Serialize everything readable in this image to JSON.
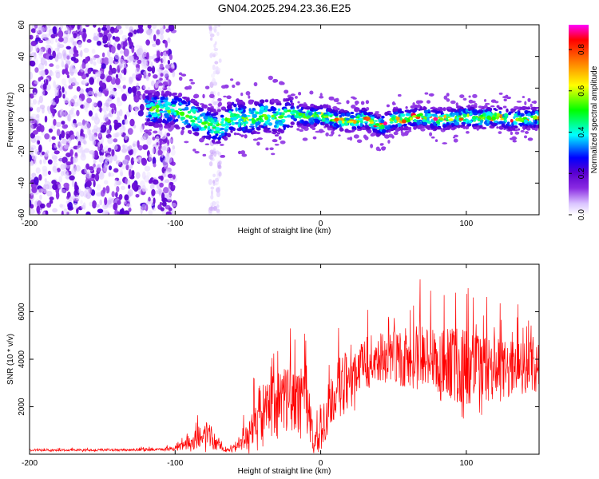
{
  "figure_title": "GN04.2025.294.23.36.E25",
  "chart_data": [
    {
      "type": "heatmap",
      "title": "GN04.2025.294.23.36.E25",
      "xlabel": "Height of straight line (km)",
      "ylabel": "Frequency (Hz)",
      "xlim": [
        -200,
        150
      ],
      "ylim": [
        -60,
        60
      ],
      "xticks": [
        -200,
        -100,
        0,
        100
      ],
      "yticks": [
        60,
        40,
        20,
        0,
        -20,
        -40,
        -60
      ],
      "colorbar": {
        "label": "Normalized spectral amplitude",
        "range": [
          0.0,
          0.92
        ],
        "ticks": [
          0.0,
          0.2,
          0.4,
          0.6,
          0.8
        ],
        "colormap": [
          "#ffffff",
          "#d9c2ff",
          "#8a2be2",
          "#5a00d0",
          "#0000ff",
          "#00ffff",
          "#00ff00",
          "#ffff00",
          "#ff8000",
          "#ff0000",
          "#ff00ff"
        ]
      },
      "regions": [
        {
          "desc": "broadband scatter",
          "x_range": [
            -200,
            -100
          ],
          "freq_range": [
            -60,
            60
          ],
          "amplitude": 0.05
        },
        {
          "desc": "narrow scatter column",
          "x_range": [
            -76,
            -69
          ],
          "freq_range": [
            -60,
            60
          ],
          "amplitude": 0.03
        },
        {
          "desc": "main band",
          "x_range": [
            -120,
            150
          ],
          "center_freq_hz": 0,
          "half_width_hz": 7,
          "peak_amplitude": 0.9
        }
      ],
      "band_centerline": {
        "x": [
          -120,
          -100,
          -90,
          -80,
          -70,
          -60,
          -50,
          -40,
          -30,
          -20,
          -10,
          0,
          10,
          20,
          30,
          40,
          50,
          60,
          70,
          80,
          90,
          100,
          110,
          120,
          130,
          140,
          150
        ],
        "freq": [
          7,
          6,
          3,
          -2,
          -5,
          2,
          0,
          3,
          1,
          4,
          2,
          3,
          0,
          -1,
          1,
          -4,
          0,
          1,
          2,
          0,
          1,
          2,
          1,
          2,
          0,
          1,
          1
        ]
      }
    },
    {
      "type": "line",
      "xlabel": "Height of straight line (km)",
      "ylabel": "SNR (10 * v/v)",
      "xlim": [
        -200,
        150
      ],
      "ylim": [
        0,
        8000
      ],
      "xticks": [
        -200,
        -100,
        0,
        100
      ],
      "yticks": [
        2000,
        4000,
        6000
      ],
      "color": "#ff0000",
      "envelope": {
        "x": [
          -200,
          -150,
          -110,
          -100,
          -90,
          -80,
          -75,
          -70,
          -65,
          -60,
          -50,
          -45,
          -40,
          -30,
          -20,
          -10,
          -5,
          0,
          5,
          10,
          20,
          30,
          40,
          50,
          60,
          70,
          80,
          90,
          100,
          110,
          120,
          130,
          140,
          150
        ],
        "median": [
          170,
          180,
          200,
          260,
          420,
          900,
          700,
          350,
          200,
          220,
          700,
          1600,
          1800,
          2000,
          2300,
          2600,
          400,
          700,
          1800,
          2600,
          3300,
          3800,
          4100,
          4000,
          4050,
          4100,
          3800,
          3800,
          3700,
          3600,
          3500,
          3500,
          3700,
          3700
        ],
        "spread": [
          60,
          70,
          80,
          150,
          400,
          800,
          700,
          300,
          150,
          250,
          900,
          1500,
          1800,
          2000,
          2100,
          2300,
          600,
          1200,
          1700,
          1800,
          1800,
          1600,
          1500,
          1700,
          1900,
          2100,
          2200,
          2300,
          2300,
          2000,
          2000,
          1800,
          1700,
          1500
        ]
      }
    }
  ]
}
